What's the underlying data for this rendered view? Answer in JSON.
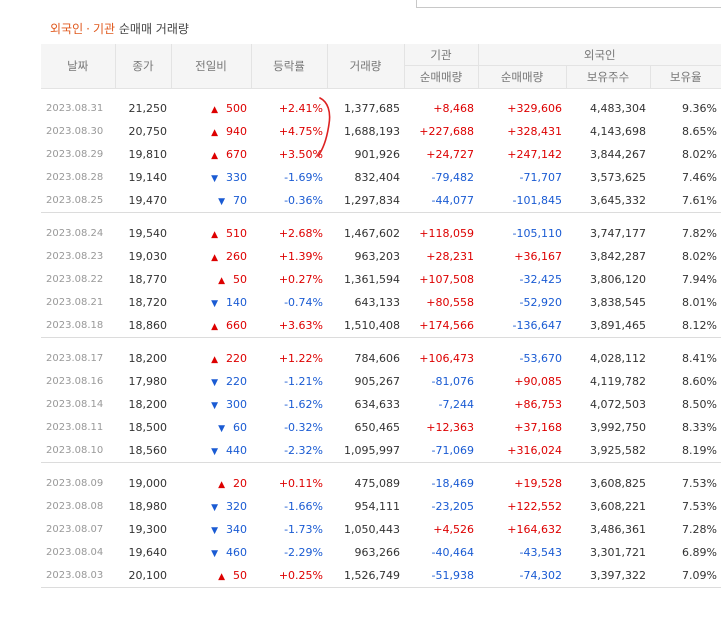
{
  "caption": {
    "part1": "외국인",
    "sep": "·",
    "part2": "기관",
    "rest": "순매매 거래량"
  },
  "headers": {
    "date": "날짜",
    "close": "종가",
    "diff": "전일비",
    "rate": "등락률",
    "volume": "거래량",
    "inst": "기관",
    "foreign": "외국인",
    "inst_net": "순매매량",
    "foreign_net": "순매매량",
    "holdings": "보유주수",
    "ratio": "보유율"
  },
  "colors": {
    "up": "#dd0000",
    "down": "#1a5bd3",
    "accent": "#e05a1f"
  },
  "icons": {
    "up": "triangle-up-icon",
    "down": "triangle-down-icon"
  },
  "groups": [
    [
      {
        "date": "2023.08.31",
        "close": "21,250",
        "dir": "up",
        "diff": "500",
        "rate": "+2.41%",
        "volume": "1,377,685",
        "inst": "+8,468",
        "foreign": "+329,606",
        "holdings": "4,483,304",
        "ratio": "9.36%"
      },
      {
        "date": "2023.08.30",
        "close": "20,750",
        "dir": "up",
        "diff": "940",
        "rate": "+4.75%",
        "volume": "1,688,193",
        "inst": "+227,688",
        "foreign": "+328,431",
        "holdings": "4,143,698",
        "ratio": "8.65%"
      },
      {
        "date": "2023.08.29",
        "close": "19,810",
        "dir": "up",
        "diff": "670",
        "rate": "+3.50%",
        "volume": "901,926",
        "inst": "+24,727",
        "foreign": "+247,142",
        "holdings": "3,844,267",
        "ratio": "8.02%"
      },
      {
        "date": "2023.08.28",
        "close": "19,140",
        "dir": "down",
        "diff": "330",
        "rate": "-1.69%",
        "volume": "832,404",
        "inst": "-79,482",
        "foreign": "-71,707",
        "holdings": "3,573,625",
        "ratio": "7.46%"
      },
      {
        "date": "2023.08.25",
        "close": "19,470",
        "dir": "down",
        "diff": "70",
        "rate": "-0.36%",
        "volume": "1,297,834",
        "inst": "-44,077",
        "foreign": "-101,845",
        "holdings": "3,645,332",
        "ratio": "7.61%"
      }
    ],
    [
      {
        "date": "2023.08.24",
        "close": "19,540",
        "dir": "up",
        "diff": "510",
        "rate": "+2.68%",
        "volume": "1,467,602",
        "inst": "+118,059",
        "foreign": "-105,110",
        "holdings": "3,747,177",
        "ratio": "7.82%"
      },
      {
        "date": "2023.08.23",
        "close": "19,030",
        "dir": "up",
        "diff": "260",
        "rate": "+1.39%",
        "volume": "963,203",
        "inst": "+28,231",
        "foreign": "+36,167",
        "holdings": "3,842,287",
        "ratio": "8.02%"
      },
      {
        "date": "2023.08.22",
        "close": "18,770",
        "dir": "up",
        "diff": "50",
        "rate": "+0.27%",
        "volume": "1,361,594",
        "inst": "+107,508",
        "foreign": "-32,425",
        "holdings": "3,806,120",
        "ratio": "7.94%"
      },
      {
        "date": "2023.08.21",
        "close": "18,720",
        "dir": "down",
        "diff": "140",
        "rate": "-0.74%",
        "volume": "643,133",
        "inst": "+80,558",
        "foreign": "-52,920",
        "holdings": "3,838,545",
        "ratio": "8.01%"
      },
      {
        "date": "2023.08.18",
        "close": "18,860",
        "dir": "up",
        "diff": "660",
        "rate": "+3.63%",
        "volume": "1,510,408",
        "inst": "+174,566",
        "foreign": "-136,647",
        "holdings": "3,891,465",
        "ratio": "8.12%"
      }
    ],
    [
      {
        "date": "2023.08.17",
        "close": "18,200",
        "dir": "up",
        "diff": "220",
        "rate": "+1.22%",
        "volume": "784,606",
        "inst": "+106,473",
        "foreign": "-53,670",
        "holdings": "4,028,112",
        "ratio": "8.41%"
      },
      {
        "date": "2023.08.16",
        "close": "17,980",
        "dir": "down",
        "diff": "220",
        "rate": "-1.21%",
        "volume": "905,267",
        "inst": "-81,076",
        "foreign": "+90,085",
        "holdings": "4,119,782",
        "ratio": "8.60%"
      },
      {
        "date": "2023.08.14",
        "close": "18,200",
        "dir": "down",
        "diff": "300",
        "rate": "-1.62%",
        "volume": "634,633",
        "inst": "-7,244",
        "foreign": "+86,753",
        "holdings": "4,072,503",
        "ratio": "8.50%"
      },
      {
        "date": "2023.08.11",
        "close": "18,500",
        "dir": "down",
        "diff": "60",
        "rate": "-0.32%",
        "volume": "650,465",
        "inst": "+12,363",
        "foreign": "+37,168",
        "holdings": "3,992,750",
        "ratio": "8.33%"
      },
      {
        "date": "2023.08.10",
        "close": "18,560",
        "dir": "down",
        "diff": "440",
        "rate": "-2.32%",
        "volume": "1,095,997",
        "inst": "-71,069",
        "foreign": "+316,024",
        "holdings": "3,925,582",
        "ratio": "8.19%"
      }
    ],
    [
      {
        "date": "2023.08.09",
        "close": "19,000",
        "dir": "up",
        "diff": "20",
        "rate": "+0.11%",
        "volume": "475,089",
        "inst": "-18,469",
        "foreign": "+19,528",
        "holdings": "3,608,825",
        "ratio": "7.53%"
      },
      {
        "date": "2023.08.08",
        "close": "18,980",
        "dir": "down",
        "diff": "320",
        "rate": "-1.66%",
        "volume": "954,111",
        "inst": "-23,205",
        "foreign": "+122,552",
        "holdings": "3,608,221",
        "ratio": "7.53%"
      },
      {
        "date": "2023.08.07",
        "close": "19,300",
        "dir": "down",
        "diff": "340",
        "rate": "-1.73%",
        "volume": "1,050,443",
        "inst": "+4,526",
        "foreign": "+164,632",
        "holdings": "3,486,361",
        "ratio": "7.28%"
      },
      {
        "date": "2023.08.04",
        "close": "19,640",
        "dir": "down",
        "diff": "460",
        "rate": "-2.29%",
        "volume": "963,266",
        "inst": "-40,464",
        "foreign": "-43,543",
        "holdings": "3,301,721",
        "ratio": "6.89%"
      },
      {
        "date": "2023.08.03",
        "close": "20,100",
        "dir": "up",
        "diff": "50",
        "rate": "+0.25%",
        "volume": "1,526,749",
        "inst": "-51,938",
        "foreign": "-74,302",
        "holdings": "3,397,322",
        "ratio": "7.09%"
      }
    ]
  ]
}
